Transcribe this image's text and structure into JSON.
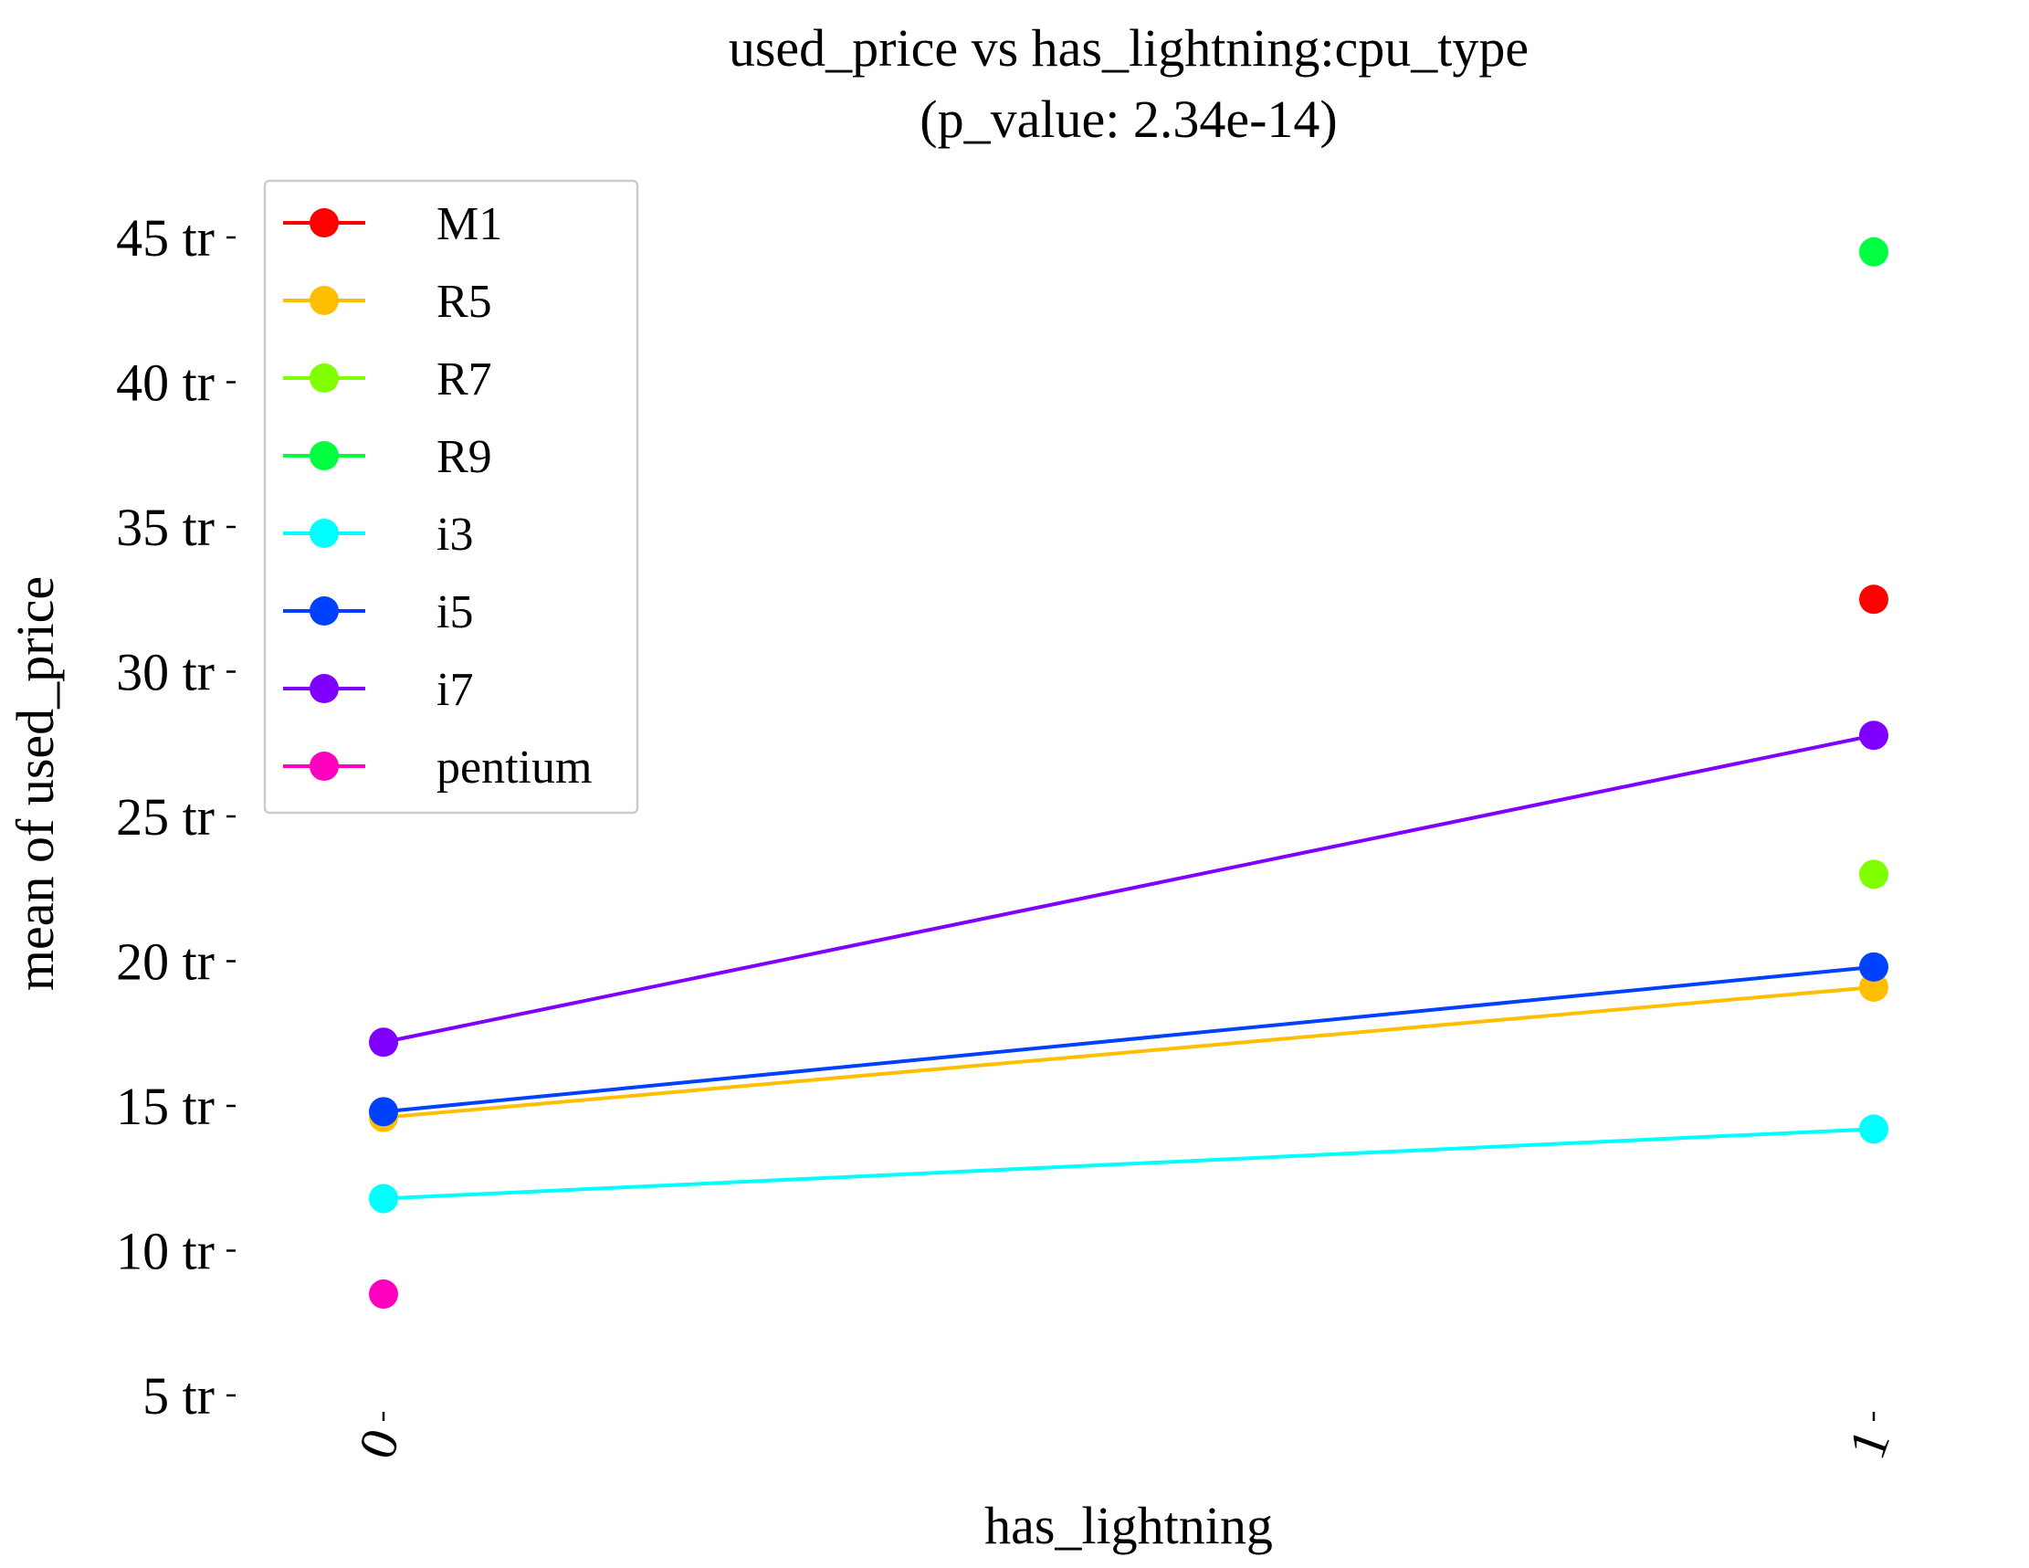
{
  "chart_data": {
    "type": "line",
    "title": "used_price vs has_lightning:cpu_type",
    "subtitle": "(p_value: 2.34e-14)",
    "xlabel": "has_lightning",
    "ylabel": "mean of used_price",
    "x": [
      "0",
      "1"
    ],
    "y_ticks": [
      5,
      10,
      15,
      20,
      25,
      30,
      35,
      40,
      45
    ],
    "y_tick_labels": [
      "5 tr",
      "10 tr",
      "15 tr",
      "20 tr",
      "25 tr",
      "30 tr",
      "35 tr",
      "40 tr",
      "45 tr"
    ],
    "ylim": [
      5,
      45
    ],
    "grid": false,
    "legend_position": "top-left",
    "series": [
      {
        "name": "M1",
        "color": "#ff0000",
        "values": [
          null,
          32.5
        ]
      },
      {
        "name": "R5",
        "color": "#ffbf00",
        "values": [
          14.6,
          19.1
        ]
      },
      {
        "name": "R7",
        "color": "#80ff00",
        "values": [
          null,
          23.0
        ]
      },
      {
        "name": "R9",
        "color": "#00ff40",
        "values": [
          null,
          44.5
        ]
      },
      {
        "name": "i3",
        "color": "#00ffff",
        "values": [
          11.8,
          14.2
        ]
      },
      {
        "name": "i5",
        "color": "#0040ff",
        "values": [
          14.8,
          19.8
        ]
      },
      {
        "name": "i7",
        "color": "#8000ff",
        "values": [
          17.2,
          27.8
        ]
      },
      {
        "name": "pentium",
        "color": "#ff00bf",
        "values": [
          8.5,
          null
        ]
      }
    ]
  }
}
